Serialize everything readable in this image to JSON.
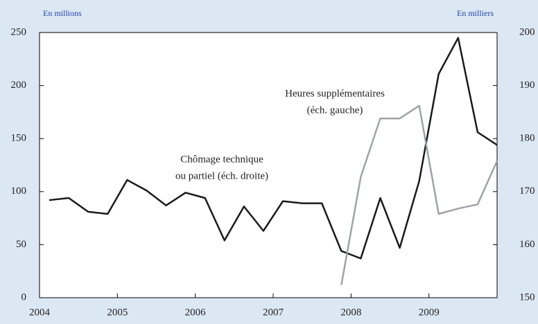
{
  "chart_data": {
    "type": "line",
    "y_unit_label": "En millions",
    "y2_unit_label": "En milliers",
    "annotations": [
      "Heures supplémentaires",
      "(éch. gauche)",
      "Chômage technique",
      "ou partiel (éch. droite)"
    ],
    "x": [
      2004.125,
      2004.375,
      2004.625,
      2004.875,
      2005.125,
      2005.375,
      2005.625,
      2005.875,
      2006.125,
      2006.375,
      2006.625,
      2006.875,
      2007.125,
      2007.375,
      2007.625,
      2007.875,
      2008.125,
      2008.375,
      2008.625,
      2008.875,
      2009.125,
      2009.375,
      2009.625,
      2009.875
    ],
    "xlim": [
      2004,
      2009.875
    ],
    "xticks": [
      2004,
      2005,
      2006,
      2007,
      2008,
      2009
    ],
    "ylim": [
      0,
      250
    ],
    "yticks": [
      0,
      50,
      100,
      150,
      200,
      250
    ],
    "y2lim": [
      150,
      200
    ],
    "y2ticks": [
      150,
      160,
      170,
      180,
      190,
      200
    ],
    "series": [
      {
        "name": "Chômage technique ou partiel",
        "color": "#1a1a1a",
        "axis": "y2",
        "values": [
          168.4,
          168.8,
          166.2,
          165.8,
          172.2,
          170.2,
          167.4,
          169.8,
          168.8,
          160.8,
          167.2,
          162.6,
          168.2,
          167.8,
          167.8,
          158.8,
          157.4,
          168.8,
          159.4,
          172,
          192.2,
          199,
          181.2,
          178.8
        ]
      },
      {
        "name": "Heures supplémentaires",
        "color": "#9ea3a8",
        "axis": "y",
        "values": [
          null,
          null,
          null,
          null,
          null,
          null,
          null,
          null,
          null,
          null,
          null,
          null,
          null,
          null,
          null,
          12,
          114,
          169,
          169,
          181,
          79,
          84,
          88,
          129
        ]
      }
    ]
  }
}
